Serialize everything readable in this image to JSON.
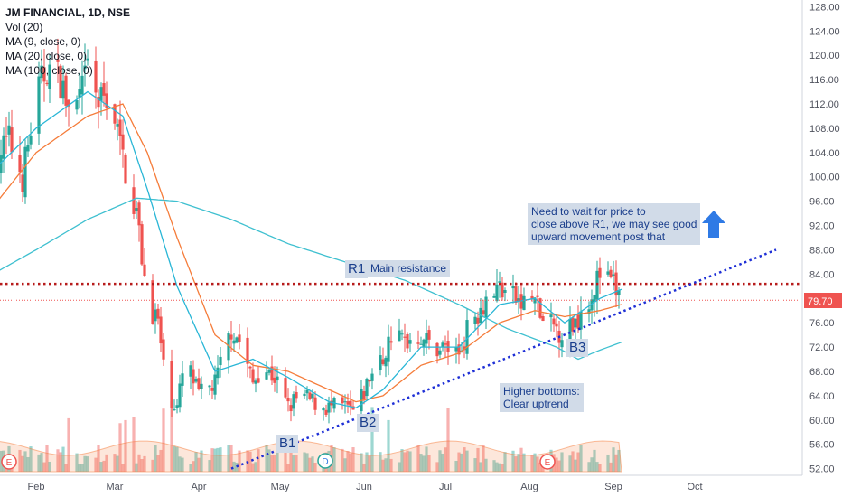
{
  "legend": {
    "title": "JM FINANCIAL, 1D, NSE",
    "lines": [
      "Vol (20)",
      "MA (9, close, 0)",
      "MA (20, close, 0)",
      "MA (100, close, 0)"
    ]
  },
  "colors": {
    "up": "#26a69a",
    "down": "#ef5350",
    "ma9": "#29b6d6",
    "ma20": "#f57c3a",
    "ma100": "#3fc0d0",
    "resistance": "#b71c1c",
    "trendline": "#1e2fd6",
    "price_label_bg": "#ef5350",
    "arrow": "#2f7ae5"
  },
  "annotations": {
    "r1": "R1",
    "r1_note": "Main resistance",
    "b1": "B1",
    "b2": "B2",
    "b3": "B3",
    "higher_bottoms_l1": "Higher bottoms:",
    "higher_bottoms_l2": "Clear uptrend",
    "wait_l1": "Need to wait for price to",
    "wait_l2": "close above R1, we may see good",
    "wait_l3": "upward movement post that"
  },
  "markers": {
    "e1": "E",
    "d1": "D",
    "e2": "E"
  },
  "chart_data": {
    "type": "candlestick",
    "symbol": "JM FINANCIAL",
    "interval": "1D",
    "exchange": "NSE",
    "x_labels": [
      "Feb",
      "Mar",
      "Apr",
      "May",
      "Jun",
      "Jul",
      "Aug",
      "Sep",
      "Oct"
    ],
    "y_ticks": [
      "52.00",
      "56.00",
      "60.00",
      "64.00",
      "68.00",
      "72.00",
      "76.00",
      "80.00",
      "84.00",
      "88.00",
      "92.00",
      "96.00",
      "100.00",
      "104.00",
      "108.00",
      "112.00",
      "116.00",
      "120.00",
      "124.00",
      "128.00"
    ],
    "ylim": [
      51.5,
      128.5
    ],
    "last_price": "79.70",
    "resistance_level": 82.4,
    "trendline": [
      {
        "x": "2020-04-13",
        "y": 52.0
      },
      {
        "x": "2020-10-31",
        "y": 88.0
      }
    ],
    "close_path": [
      [
        "2020-01-16",
        103
      ],
      [
        "2020-01-22",
        106
      ],
      [
        "2020-01-27",
        100
      ],
      [
        "2020-02-01",
        113
      ],
      [
        "2020-02-05",
        118
      ],
      [
        "2020-02-10",
        116
      ],
      [
        "2020-02-14",
        109
      ],
      [
        "2020-02-18",
        114
      ],
      [
        "2020-02-20",
        118
      ],
      [
        "2020-02-24",
        112
      ],
      [
        "2020-02-28",
        114
      ],
      [
        "2020-03-04",
        103
      ],
      [
        "2020-03-09",
        94
      ],
      [
        "2020-03-13",
        80
      ],
      [
        "2020-03-17",
        76
      ],
      [
        "2020-03-20",
        65
      ],
      [
        "2020-03-24",
        62
      ],
      [
        "2020-03-27",
        70
      ],
      [
        "2020-04-01",
        64
      ],
      [
        "2020-04-07",
        66
      ],
      [
        "2020-04-13",
        75
      ],
      [
        "2020-04-16",
        73
      ],
      [
        "2020-04-21",
        66
      ],
      [
        "2020-04-24",
        69
      ],
      [
        "2020-04-29",
        67
      ],
      [
        "2020-05-04",
        62
      ],
      [
        "2020-05-08",
        64
      ],
      [
        "2020-05-13",
        63
      ],
      [
        "2020-05-19",
        62
      ],
      [
        "2020-05-25",
        62
      ],
      [
        "2020-05-29",
        61
      ],
      [
        "2020-06-03",
        67
      ],
      [
        "2020-06-08",
        70
      ],
      [
        "2020-06-11",
        74
      ],
      [
        "2020-06-16",
        73
      ],
      [
        "2020-06-22",
        74
      ],
      [
        "2020-06-26",
        72
      ],
      [
        "2020-07-01",
        72
      ],
      [
        "2020-07-06",
        71
      ],
      [
        "2020-07-10",
        76
      ],
      [
        "2020-07-16",
        80
      ],
      [
        "2020-07-21",
        82
      ],
      [
        "2020-07-24",
        81
      ],
      [
        "2020-07-29",
        79
      ],
      [
        "2020-08-03",
        80
      ],
      [
        "2020-08-06",
        76
      ],
      [
        "2020-08-11",
        75
      ],
      [
        "2020-08-14",
        74
      ],
      [
        "2020-08-19",
        77
      ],
      [
        "2020-08-24",
        81
      ],
      [
        "2020-08-27",
        84
      ],
      [
        "2020-09-01",
        82
      ],
      [
        "2020-09-04",
        79.7
      ]
    ],
    "ma9": [
      [
        "2020-01-16",
        101
      ],
      [
        "2020-02-01",
        108
      ],
      [
        "2020-02-20",
        114
      ],
      [
        "2020-03-04",
        110
      ],
      [
        "2020-03-13",
        98
      ],
      [
        "2020-03-24",
        82
      ],
      [
        "2020-04-07",
        68
      ],
      [
        "2020-04-21",
        70
      ],
      [
        "2020-05-04",
        67
      ],
      [
        "2020-05-19",
        63
      ],
      [
        "2020-05-29",
        62
      ],
      [
        "2020-06-08",
        65
      ],
      [
        "2020-06-22",
        72
      ],
      [
        "2020-07-06",
        72
      ],
      [
        "2020-07-21",
        79
      ],
      [
        "2020-08-03",
        80
      ],
      [
        "2020-08-14",
        76
      ],
      [
        "2020-08-27",
        80
      ],
      [
        "2020-09-04",
        81.5
      ]
    ],
    "ma20": [
      [
        "2020-01-16",
        95
      ],
      [
        "2020-02-01",
        104
      ],
      [
        "2020-02-20",
        110
      ],
      [
        "2020-03-04",
        112
      ],
      [
        "2020-03-13",
        104
      ],
      [
        "2020-03-24",
        90
      ],
      [
        "2020-04-07",
        74
      ],
      [
        "2020-04-21",
        69
      ],
      [
        "2020-05-04",
        68
      ],
      [
        "2020-05-19",
        65
      ],
      [
        "2020-05-29",
        63
      ],
      [
        "2020-06-08",
        64
      ],
      [
        "2020-06-22",
        69
      ],
      [
        "2020-07-06",
        71
      ],
      [
        "2020-07-21",
        76
      ],
      [
        "2020-08-03",
        78
      ],
      [
        "2020-08-14",
        77
      ],
      [
        "2020-08-27",
        78
      ],
      [
        "2020-09-04",
        79
      ]
    ],
    "ma100": [
      [
        "2020-01-16",
        84
      ],
      [
        "2020-02-01",
        88
      ],
      [
        "2020-02-20",
        93
      ],
      [
        "2020-03-09",
        96.5
      ],
      [
        "2020-03-24",
        96
      ],
      [
        "2020-04-13",
        93
      ],
      [
        "2020-05-04",
        89
      ],
      [
        "2020-05-25",
        86
      ],
      [
        "2020-06-16",
        83
      ],
      [
        "2020-07-06",
        79
      ],
      [
        "2020-07-24",
        75
      ],
      [
        "2020-08-11",
        72
      ],
      [
        "2020-08-19",
        70
      ],
      [
        "2020-08-27",
        71.5
      ],
      [
        "2020-09-04",
        72.8
      ]
    ]
  }
}
